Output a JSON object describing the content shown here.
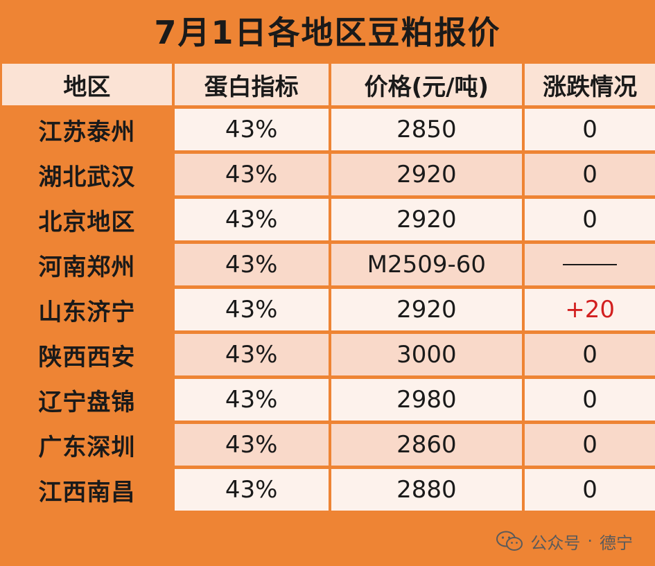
{
  "title": "7月1日各地区豆粕报价",
  "headers": {
    "region": "地区",
    "protein": "蛋白指标",
    "price": "价格(元/吨)",
    "change": "涨跌情况"
  },
  "rows": [
    {
      "region": "江苏泰州",
      "protein": "43%",
      "price": "2850",
      "change": "0"
    },
    {
      "region": "湖北武汉",
      "protein": "43%",
      "price": "2920",
      "change": "0"
    },
    {
      "region": "北京地区",
      "protein": "43%",
      "price": "2920",
      "change": "0"
    },
    {
      "region": "河南郑州",
      "protein": "43%",
      "price": "M2509-60",
      "change": ""
    },
    {
      "region": "山东济宁",
      "protein": "43%",
      "price": "2920",
      "change": "+20"
    },
    {
      "region": "陕西西安",
      "protein": "43%",
      "price": "3000",
      "change": "0"
    },
    {
      "region": "辽宁盘锦",
      "protein": "43%",
      "price": "2980",
      "change": "0"
    },
    {
      "region": "广东深圳",
      "protein": "43%",
      "price": "2860",
      "change": "0"
    },
    {
      "region": "江西南昌",
      "protein": "43%",
      "price": "2880",
      "change": "0"
    }
  ],
  "footer": {
    "icon": "wechat-icon",
    "account_type": "公众号",
    "separator": "·",
    "account_name": "德宁"
  },
  "colors": {
    "orange": "#ee8434",
    "row_light": "#fdf2ec",
    "row_dark": "#f9d9c9",
    "up": "#d21f1f"
  }
}
